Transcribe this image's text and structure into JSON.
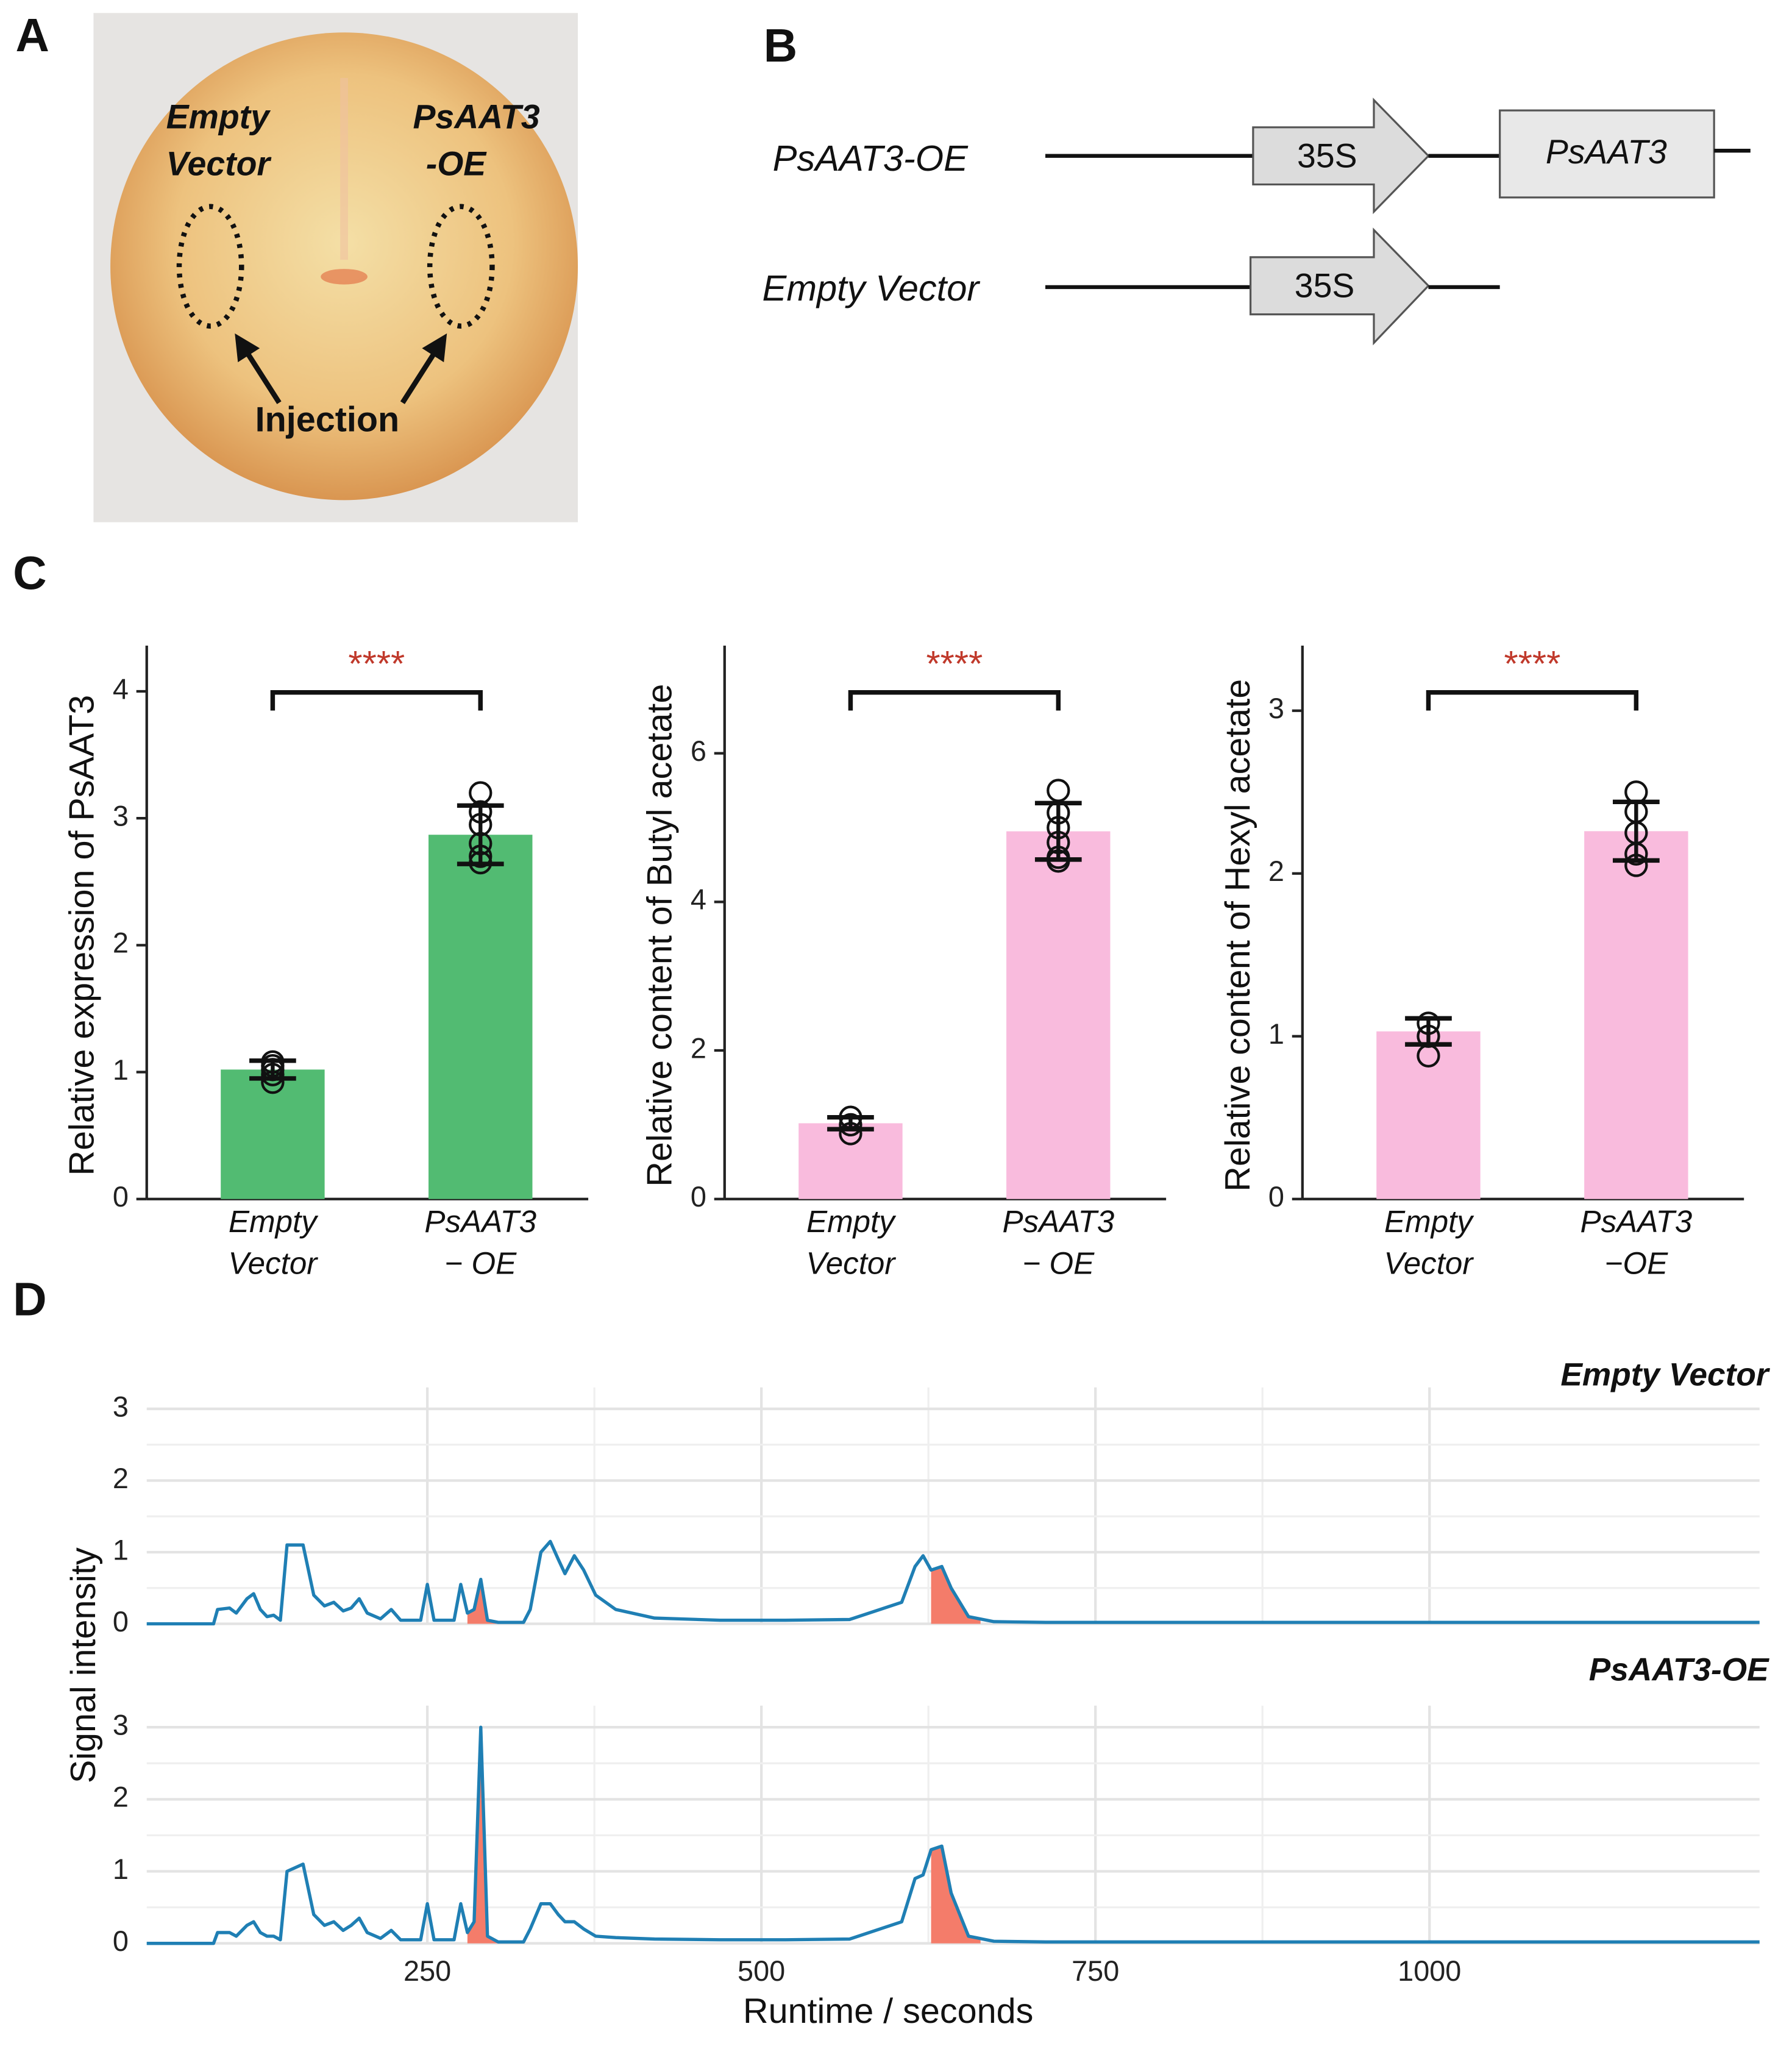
{
  "panel_labels": [
    "A",
    "B",
    "C",
    "D"
  ],
  "photo": {
    "labels": [
      [
        "Empty",
        "Vector"
      ],
      [
        "PsAAT3",
        "-OE"
      ]
    ],
    "arrow_label": "Injection"
  },
  "construct": {
    "rows": [
      {
        "name": "PsAAT3-OE",
        "promoter": "35S",
        "gene": "PsAAT3"
      },
      {
        "name": "Empty Vector",
        "promoter": "35S"
      }
    ]
  },
  "chart_data": [
    {
      "type": "bar",
      "ylabel": "Relative expression of PsAAT3",
      "categories": [
        "Empty Vector",
        "PsAAT3 − OE"
      ],
      "values": [
        1.02,
        2.87
      ],
      "errors": [
        0.07,
        0.23
      ],
      "points": [
        [
          1.08,
          1.02,
          0.98,
          0.92,
          1.05
        ],
        [
          3.2,
          3.05,
          2.95,
          2.8,
          2.7,
          2.65
        ]
      ],
      "color": "#52bb72",
      "ylim": [
        0,
        4.36
      ],
      "yticks": [
        0,
        1,
        2,
        3,
        4
      ],
      "annotation": "****",
      "annotation_color": "#c0392b"
    },
    {
      "type": "bar",
      "ylabel": "Relative content of Butyl acetate",
      "categories": [
        "Empty Vector",
        "PsAAT3 − OE"
      ],
      "values": [
        1.02,
        4.95
      ],
      "errors": [
        0.08,
        0.38
      ],
      "points": [
        [
          1.1,
          1.0,
          0.88
        ],
        [
          5.5,
          5.2,
          5.0,
          4.8,
          4.6,
          4.55
        ]
      ],
      "color": "#f9bbdd",
      "ylim": [
        0,
        7.45
      ],
      "yticks": [
        0,
        2,
        4,
        6
      ],
      "annotation": "****",
      "annotation_color": "#c0392b"
    },
    {
      "type": "bar",
      "ylabel": "Relative content of Hexyl acetate",
      "categories": [
        "Empty Vector",
        "PsAAT3 −OE"
      ],
      "values": [
        1.03,
        2.26
      ],
      "errors": [
        0.08,
        0.18
      ],
      "points": [
        [
          1.08,
          1.0,
          0.88
        ],
        [
          2.5,
          2.38,
          2.25,
          2.12,
          2.05
        ]
      ],
      "color": "#f9bbdd",
      "ylim": [
        0,
        3.4
      ],
      "yticks": [
        0,
        1,
        2,
        3
      ],
      "annotation": "****",
      "annotation_color": "#c0392b"
    },
    {
      "type": "line",
      "xlabel": "Runtime / seconds",
      "ylabel": "Signal intensity",
      "xlim": [
        40,
        1247
      ],
      "xticks": [
        250,
        500,
        750,
        1000
      ],
      "grid": true,
      "x": [
        40,
        90,
        93,
        102,
        107,
        115,
        120,
        125,
        130,
        135,
        140,
        145,
        157,
        165,
        173,
        180,
        187,
        193,
        199,
        205,
        215,
        223,
        230,
        245,
        250,
        255,
        270,
        275,
        280,
        285,
        290,
        295,
        303,
        322,
        327,
        335,
        342,
        348,
        353,
        360,
        367,
        376,
        391,
        420,
        469,
        518,
        566,
        605,
        615,
        621,
        627,
        635,
        642,
        655,
        674,
        713,
        1247
      ],
      "panels": [
        {
          "title": "Empty Vector",
          "ylim": [
            0,
            3.3
          ],
          "yticks": [
            0,
            1,
            2,
            3
          ],
          "highlights": [
            [
              280,
              303
            ],
            [
              627,
              664
            ]
          ],
          "highlight_color": "#f47c6a",
          "series": [
            {
              "color": "#1f7fb4",
              "values": [
                0,
                0,
                0.2,
                0.22,
                0.15,
                0.35,
                0.42,
                0.2,
                0.1,
                0.12,
                0.05,
                1.1,
                1.1,
                0.4,
                0.25,
                0.3,
                0.18,
                0.22,
                0.35,
                0.15,
                0.07,
                0.2,
                0.05,
                0.05,
                0.55,
                0.05,
                0.05,
                0.55,
                0.15,
                0.2,
                0.62,
                0.05,
                0.02,
                0.02,
                0.2,
                1.0,
                1.15,
                0.9,
                0.7,
                0.95,
                0.75,
                0.4,
                0.2,
                0.08,
                0.05,
                0.05,
                0.06,
                0.3,
                0.8,
                0.95,
                0.75,
                0.8,
                0.5,
                0.1,
                0.03,
                0.02,
                0.02
              ]
            }
          ]
        },
        {
          "title": "PsAAT3-OE",
          "ylim": [
            0,
            3.3
          ],
          "yticks": [
            0,
            1,
            2,
            3
          ],
          "highlights": [
            [
              280,
              303
            ],
            [
              627,
              664
            ]
          ],
          "highlight_color": "#f47c6a",
          "series": [
            {
              "color": "#1f7fb4",
              "values": [
                0,
                0,
                0.15,
                0.15,
                0.1,
                0.25,
                0.3,
                0.15,
                0.1,
                0.1,
                0.05,
                1.0,
                1.1,
                0.4,
                0.25,
                0.3,
                0.18,
                0.25,
                0.35,
                0.15,
                0.07,
                0.18,
                0.05,
                0.05,
                0.55,
                0.05,
                0.05,
                0.55,
                0.15,
                0.3,
                3.0,
                0.1,
                0.02,
                0.02,
                0.2,
                0.55,
                0.55,
                0.4,
                0.3,
                0.3,
                0.2,
                0.1,
                0.08,
                0.06,
                0.05,
                0.05,
                0.06,
                0.3,
                0.9,
                0.95,
                1.3,
                1.35,
                0.7,
                0.1,
                0.03,
                0.02,
                0.02
              ]
            }
          ]
        }
      ]
    }
  ]
}
